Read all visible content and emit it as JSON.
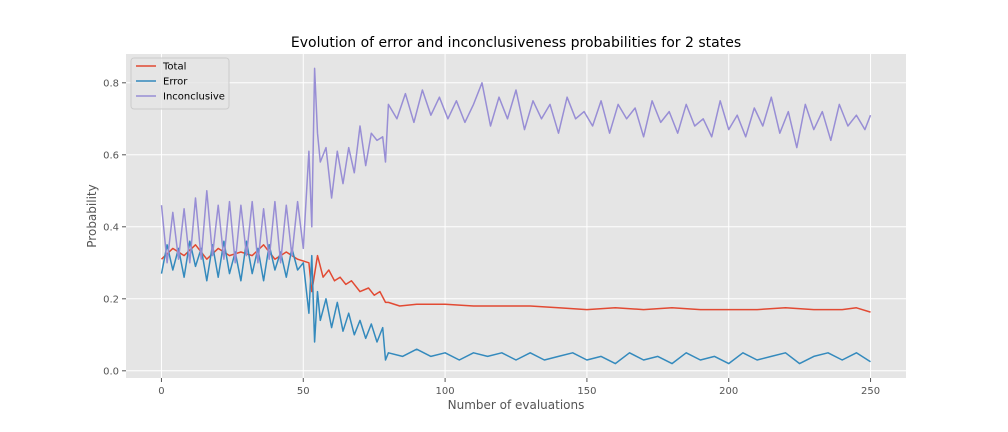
{
  "chart_data": {
    "type": "line",
    "title": "Evolution of error and inconclusiveness probabilities for 2 states",
    "xlabel": "Number of evaluations",
    "ylabel": "Probability",
    "xlim": [
      -12.5,
      262.5
    ],
    "ylim": [
      -0.02,
      0.88
    ],
    "xticks": [
      0,
      50,
      100,
      150,
      200,
      250
    ],
    "yticks": [
      0.0,
      0.2,
      0.4,
      0.6,
      0.8
    ],
    "grid": true,
    "legend_position": "top-left",
    "style": {
      "plot_background": "#e5e5e5",
      "grid_color": "#ffffff"
    },
    "series": [
      {
        "name": "Total",
        "color": "#e24a33",
        "x": [
          0,
          4,
          8,
          12,
          16,
          20,
          24,
          28,
          32,
          36,
          40,
          44,
          48,
          52,
          53,
          55,
          57,
          59,
          61,
          63,
          65,
          67,
          70,
          73,
          75,
          77,
          79,
          80,
          84,
          90,
          100,
          110,
          120,
          130,
          140,
          150,
          160,
          170,
          180,
          190,
          200,
          210,
          220,
          230,
          240,
          245,
          250
        ],
        "values": [
          0.31,
          0.34,
          0.32,
          0.35,
          0.31,
          0.34,
          0.32,
          0.33,
          0.32,
          0.35,
          0.31,
          0.33,
          0.31,
          0.3,
          0.22,
          0.32,
          0.26,
          0.28,
          0.25,
          0.26,
          0.24,
          0.25,
          0.22,
          0.23,
          0.21,
          0.22,
          0.19,
          0.19,
          0.18,
          0.185,
          0.185,
          0.18,
          0.18,
          0.18,
          0.175,
          0.17,
          0.175,
          0.17,
          0.175,
          0.17,
          0.17,
          0.17,
          0.175,
          0.17,
          0.17,
          0.175,
          0.163
        ]
      },
      {
        "name": "Error",
        "color": "#348abd",
        "x": [
          0,
          2,
          4,
          6,
          8,
          10,
          12,
          14,
          16,
          18,
          20,
          22,
          24,
          26,
          28,
          30,
          32,
          34,
          36,
          38,
          40,
          42,
          44,
          46,
          48,
          50,
          52,
          53,
          54,
          55,
          56,
          58,
          60,
          62,
          64,
          66,
          68,
          70,
          72,
          74,
          76,
          78,
          79,
          80,
          85,
          90,
          95,
          100,
          105,
          110,
          115,
          120,
          125,
          130,
          135,
          140,
          145,
          150,
          155,
          160,
          165,
          170,
          175,
          180,
          185,
          190,
          195,
          200,
          205,
          210,
          215,
          220,
          225,
          230,
          235,
          240,
          245,
          250
        ],
        "values": [
          0.27,
          0.35,
          0.28,
          0.34,
          0.26,
          0.36,
          0.29,
          0.34,
          0.25,
          0.35,
          0.26,
          0.36,
          0.27,
          0.33,
          0.25,
          0.36,
          0.27,
          0.34,
          0.25,
          0.35,
          0.28,
          0.33,
          0.26,
          0.34,
          0.28,
          0.3,
          0.16,
          0.32,
          0.08,
          0.22,
          0.14,
          0.2,
          0.12,
          0.19,
          0.11,
          0.16,
          0.1,
          0.14,
          0.09,
          0.13,
          0.08,
          0.12,
          0.03,
          0.05,
          0.04,
          0.06,
          0.04,
          0.05,
          0.03,
          0.05,
          0.04,
          0.05,
          0.03,
          0.05,
          0.03,
          0.04,
          0.05,
          0.03,
          0.04,
          0.02,
          0.05,
          0.03,
          0.04,
          0.02,
          0.05,
          0.03,
          0.04,
          0.02,
          0.05,
          0.03,
          0.04,
          0.05,
          0.02,
          0.04,
          0.05,
          0.03,
          0.05,
          0.025
        ]
      },
      {
        "name": "Inconclusive",
        "color": "#988ed5",
        "x": [
          0,
          2,
          4,
          6,
          8,
          10,
          12,
          14,
          16,
          18,
          20,
          22,
          24,
          26,
          28,
          30,
          32,
          34,
          36,
          38,
          40,
          42,
          44,
          46,
          48,
          50,
          52,
          53,
          54,
          55,
          56,
          58,
          60,
          62,
          64,
          66,
          68,
          70,
          72,
          74,
          76,
          78,
          79,
          80,
          83,
          86,
          89,
          92,
          95,
          98,
          101,
          104,
          107,
          110,
          113,
          116,
          119,
          122,
          125,
          128,
          131,
          134,
          137,
          140,
          143,
          146,
          149,
          152,
          155,
          158,
          161,
          164,
          167,
          170,
          173,
          176,
          179,
          182,
          185,
          188,
          191,
          194,
          197,
          200,
          203,
          206,
          209,
          212,
          215,
          218,
          221,
          224,
          227,
          230,
          233,
          236,
          239,
          242,
          245,
          248,
          250
        ],
        "values": [
          0.46,
          0.3,
          0.44,
          0.31,
          0.45,
          0.3,
          0.48,
          0.31,
          0.5,
          0.32,
          0.46,
          0.31,
          0.47,
          0.3,
          0.46,
          0.32,
          0.47,
          0.3,
          0.45,
          0.31,
          0.47,
          0.3,
          0.46,
          0.32,
          0.47,
          0.34,
          0.61,
          0.4,
          0.84,
          0.66,
          0.58,
          0.62,
          0.48,
          0.61,
          0.52,
          0.62,
          0.55,
          0.68,
          0.57,
          0.66,
          0.64,
          0.65,
          0.58,
          0.74,
          0.7,
          0.77,
          0.69,
          0.78,
          0.71,
          0.76,
          0.7,
          0.75,
          0.69,
          0.74,
          0.8,
          0.68,
          0.76,
          0.7,
          0.78,
          0.67,
          0.75,
          0.7,
          0.74,
          0.66,
          0.76,
          0.7,
          0.72,
          0.68,
          0.75,
          0.66,
          0.74,
          0.7,
          0.73,
          0.65,
          0.75,
          0.69,
          0.72,
          0.66,
          0.74,
          0.68,
          0.7,
          0.65,
          0.75,
          0.67,
          0.71,
          0.65,
          0.73,
          0.68,
          0.76,
          0.66,
          0.72,
          0.62,
          0.74,
          0.67,
          0.72,
          0.64,
          0.74,
          0.68,
          0.71,
          0.67,
          0.71
        ]
      }
    ]
  }
}
